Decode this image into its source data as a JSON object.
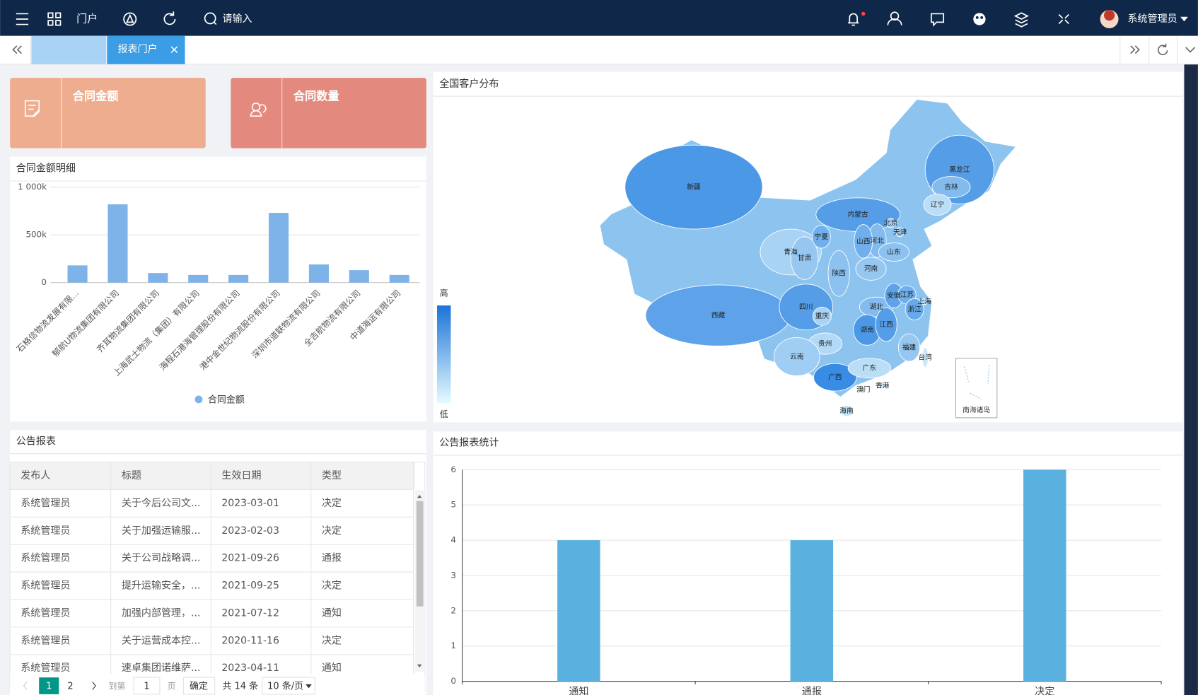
{
  "header": {
    "nav": "门户",
    "search_placeholder": "请输入",
    "user": "系统管理员"
  },
  "tabs": {
    "active": "报表门户"
  },
  "cards": [
    {
      "title": "合同金额",
      "color": "#efad8f"
    },
    {
      "title": "合同数量",
      "color": "#e4897d"
    }
  ],
  "chart_data": [
    {
      "type": "bar",
      "title": "合同金额明细",
      "categories": [
        "石格信物流发展有限...",
        "郁航U物流集团有限公司",
        "齐耳物流集团有限公司",
        "上海武士物流（集团）有限公司",
        "海程石港海管理股份有限公司",
        "港中金世纪物流股份有限公司",
        "深圳市道联物流有限公司",
        "全吉航物流有限公司",
        "中道海运有限公司"
      ],
      "series": [
        {
          "name": "合同金额",
          "color": "#7eb3ea",
          "values": [
            180000,
            820000,
            100000,
            80000,
            80000,
            730000,
            190000,
            130000,
            80000
          ]
        }
      ],
      "ylim": [
        0,
        1000000
      ],
      "yticks": [
        0,
        {
          "value": 500000,
          "label": "500k"
        },
        {
          "value": 1000000,
          "label": "1 000k"
        }
      ],
      "grid": true,
      "legend": "bottom"
    },
    {
      "type": "map",
      "title": "全国客户分布",
      "range": [
        0,
        100
      ],
      "high_label": "高",
      "low_label": "低",
      "inset_label": "南海诸岛",
      "regions": [
        {
          "name": "新疆",
          "value": 80
        },
        {
          "name": "西藏",
          "value": 70
        },
        {
          "name": "青海",
          "value": 30
        },
        {
          "name": "甘肃",
          "value": 40
        },
        {
          "name": "宁夏",
          "value": 60
        },
        {
          "name": "内蒙古",
          "value": 75
        },
        {
          "name": "黑龙江",
          "value": 75
        },
        {
          "name": "吉林",
          "value": 50
        },
        {
          "name": "辽宁",
          "value": 20
        },
        {
          "name": "北京",
          "value": 30
        },
        {
          "name": "天津",
          "value": 40
        },
        {
          "name": "河北",
          "value": 50
        },
        {
          "name": "山西",
          "value": 60
        },
        {
          "name": "山东",
          "value": 45
        },
        {
          "name": "陕西",
          "value": 45
        },
        {
          "name": "河南",
          "value": 40
        },
        {
          "name": "四川",
          "value": 75
        },
        {
          "name": "重庆",
          "value": 30
        },
        {
          "name": "湖北",
          "value": 50
        },
        {
          "name": "安徽",
          "value": 70
        },
        {
          "name": "江苏",
          "value": 60
        },
        {
          "name": "上海",
          "value": 30
        },
        {
          "name": "浙江",
          "value": 65
        },
        {
          "name": "湖南",
          "value": 80
        },
        {
          "name": "江西",
          "value": 75
        },
        {
          "name": "贵州",
          "value": 25
        },
        {
          "name": "云南",
          "value": 35
        },
        {
          "name": "广西",
          "value": 90
        },
        {
          "name": "广东",
          "value": 20
        },
        {
          "name": "福建",
          "value": 40
        },
        {
          "name": "台湾",
          "value": 10
        },
        {
          "name": "香港",
          "value": 10
        },
        {
          "name": "澳门",
          "value": 10
        },
        {
          "name": "海南",
          "value": 15
        }
      ]
    },
    {
      "type": "bar",
      "title": "公告报表统计",
      "categories": [
        "通知",
        "通报",
        "决定"
      ],
      "values": [
        4,
        4,
        6
      ],
      "color": "#5ab1e0",
      "ylim": [
        0,
        6
      ],
      "yticks": [
        0,
        1,
        2,
        3,
        4,
        5,
        6
      ],
      "grid": true
    }
  ],
  "table": {
    "title": "公告报表",
    "columns": [
      "发布人",
      "标题",
      "生效日期",
      "类型"
    ],
    "rows": [
      [
        "系统管理员",
        "关于今后公司文...",
        "2023-03-01",
        "决定"
      ],
      [
        "系统管理员",
        "关于加强运输服...",
        "2023-02-03",
        "决定"
      ],
      [
        "系统管理员",
        "关于公司战略调...",
        "2021-09-26",
        "通报"
      ],
      [
        "系统管理员",
        "提升运输安全，...",
        "2021-09-25",
        "决定"
      ],
      [
        "系统管理员",
        "加强内部管理，...",
        "2021-07-12",
        "通知"
      ],
      [
        "系统管理员",
        "关于运营成本控...",
        "2020-11-16",
        "决定"
      ],
      [
        "系统管理员",
        "速卓集团诺维萨...",
        "2023-04-11",
        "通知"
      ]
    ]
  },
  "pagination": {
    "pages": [
      "1",
      "2"
    ],
    "goto_label": "到第",
    "goto_value": "1",
    "page_unit": "页",
    "confirm": "确定",
    "total": "共 14 条",
    "page_size": "10 条/页"
  }
}
